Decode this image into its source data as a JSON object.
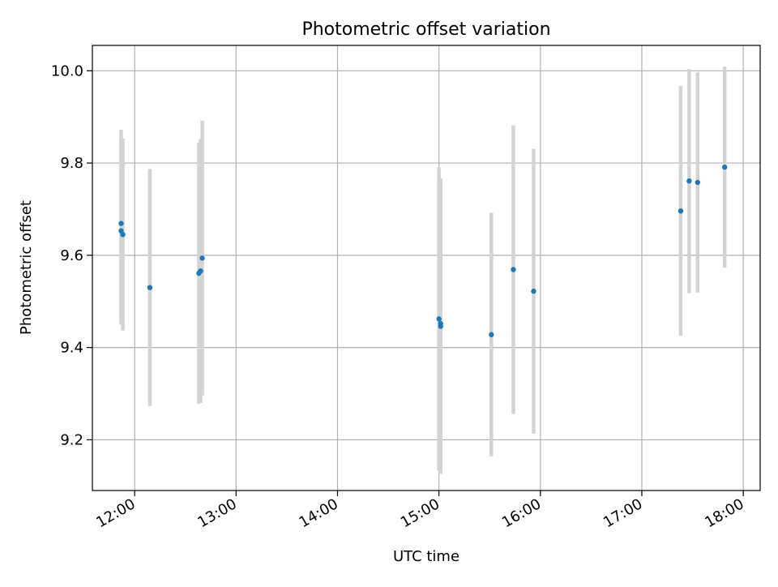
{
  "chart_data": {
    "type": "scatter",
    "title": "Photometric offset variation",
    "xlabel": "UTC time",
    "ylabel": "Photometric offset",
    "x_axis_type": "time",
    "xlim": [
      "11:35",
      "18:10"
    ],
    "ylim": [
      9.09,
      10.055
    ],
    "xticks": [
      "12:00",
      "13:00",
      "14:00",
      "15:00",
      "16:00",
      "17:00",
      "18:00"
    ],
    "yticks": [
      "9.2",
      "9.4",
      "9.6",
      "9.8",
      "10.0"
    ],
    "grid": true,
    "legend": "none",
    "colors": {
      "points": "#1f77b4",
      "errorbars": "#d3d3d3",
      "grid": "#b0b0b0",
      "axes": "#000000"
    },
    "points": [
      {
        "time": "11:52",
        "y": 9.669,
        "yerr": 0.203
      },
      {
        "time": "11:52",
        "y": 9.653,
        "yerr": 0.203
      },
      {
        "time": "11:53",
        "y": 9.645,
        "yerr": 0.208
      },
      {
        "time": "12:09",
        "y": 9.53,
        "yerr": 0.257
      },
      {
        "time": "12:38",
        "y": 9.561,
        "yerr": 0.283
      },
      {
        "time": "12:39",
        "y": 9.566,
        "yerr": 0.286
      },
      {
        "time": "12:40",
        "y": 9.594,
        "yerr": 0.298
      },
      {
        "time": "15:00",
        "y": 9.462,
        "yerr": 0.329
      },
      {
        "time": "15:01",
        "y": 9.452,
        "yerr": 0.315
      },
      {
        "time": "15:01",
        "y": 9.446,
        "yerr": 0.32
      },
      {
        "time": "15:31",
        "y": 9.428,
        "yerr": 0.264
      },
      {
        "time": "15:44",
        "y": 9.569,
        "yerr": 0.313
      },
      {
        "time": "15:56",
        "y": 9.522,
        "yerr": 0.309
      },
      {
        "time": "17:23",
        "y": 9.696,
        "yerr": 0.271
      },
      {
        "time": "17:28",
        "y": 9.761,
        "yerr": 0.243
      },
      {
        "time": "17:33",
        "y": 9.758,
        "yerr": 0.239
      },
      {
        "time": "17:49",
        "y": 9.791,
        "yerr": 0.218
      }
    ]
  }
}
